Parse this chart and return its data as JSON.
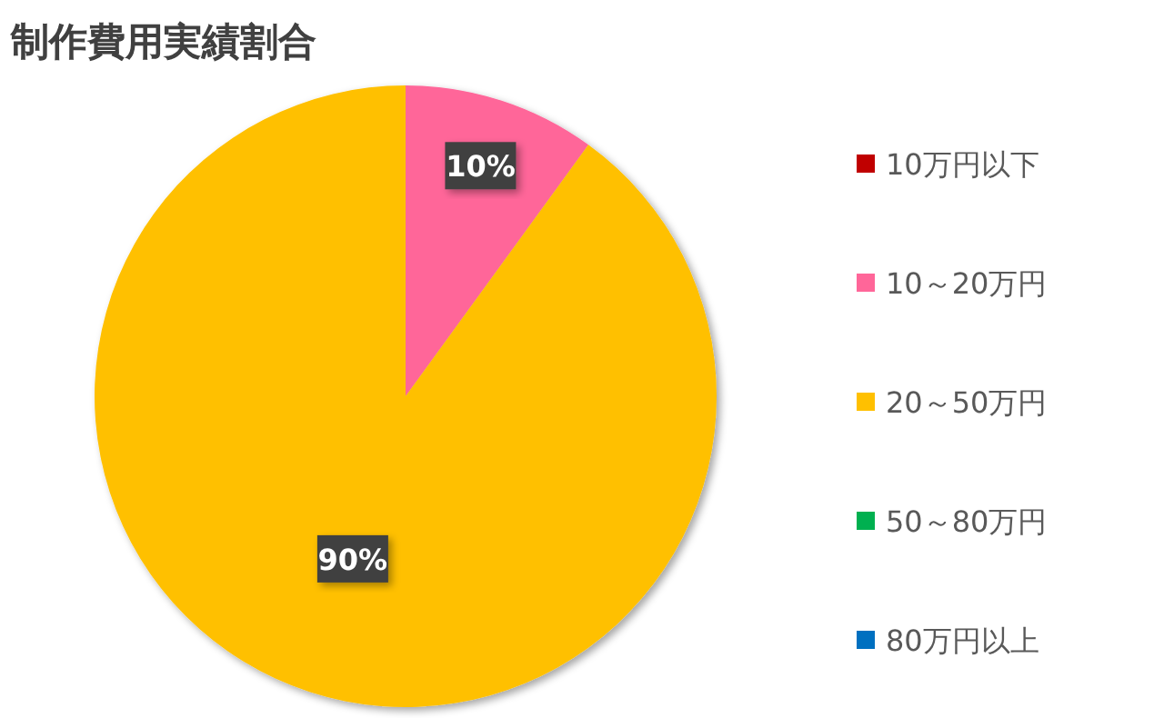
{
  "chart_data": {
    "type": "pie",
    "title": "制作費用実績割合",
    "categories": [
      "10万円以下",
      "10～20万円",
      "20～50万円",
      "50～80万円",
      "80万円以上"
    ],
    "values": [
      0,
      10,
      90,
      0,
      0
    ],
    "colors": [
      "#c00000",
      "#ff6699",
      "#ffc000",
      "#00b050",
      "#0070c0"
    ],
    "value_labels": [
      null,
      "10%",
      "90%",
      null,
      null
    ],
    "legend": "right"
  }
}
